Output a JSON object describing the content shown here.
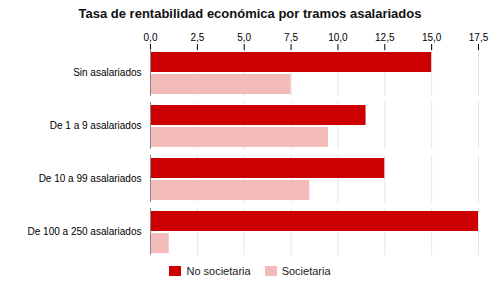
{
  "chart_data": {
    "type": "bar",
    "orientation": "horizontal",
    "title": "Tasa de rentabilidad económica por tramos asalariados",
    "categories": [
      "Sin asalariados",
      "De 1 a 9 asalariados",
      "De 10 a 99 asalariados",
      "De 100 a 250 asalariados"
    ],
    "series": [
      {
        "name": "No societaria",
        "color": "#CC0000",
        "values": [
          15.0,
          11.5,
          12.5,
          17.5
        ]
      },
      {
        "name": "Societaria",
        "color": "#F4BBBB",
        "values": [
          7.5,
          9.5,
          8.5,
          1.0
        ]
      }
    ],
    "xlim": [
      0,
      17.5
    ],
    "xticks": [
      {
        "value": 0.0,
        "label": "0,0"
      },
      {
        "value": 2.5,
        "label": "2,5"
      },
      {
        "value": 5.0,
        "label": "5,0"
      },
      {
        "value": 7.5,
        "label": "7,5"
      },
      {
        "value": 10.0,
        "label": "10,0"
      },
      {
        "value": 12.5,
        "label": "12,5"
      },
      {
        "value": 15.0,
        "label": "15,0"
      },
      {
        "value": 17.5,
        "label": "17,5"
      }
    ],
    "grid": true,
    "legend": "bottom"
  }
}
